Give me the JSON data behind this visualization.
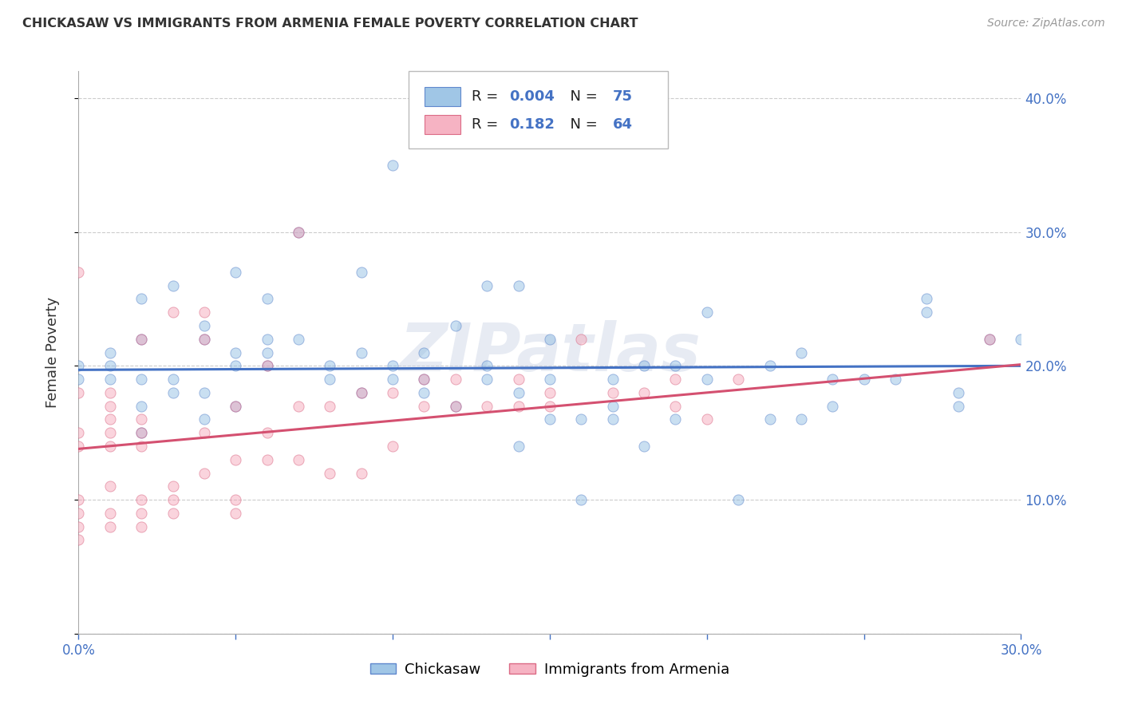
{
  "title": "CHICKASAW VS IMMIGRANTS FROM ARMENIA FEMALE POVERTY CORRELATION CHART",
  "source": "Source: ZipAtlas.com",
  "ylabel": "Female Poverty",
  "color_blue": "#89b8e0",
  "color_pink": "#f4a0b4",
  "trendline_blue": "#4472c4",
  "trendline_pink": "#d45070",
  "watermark": "ZIPatlas",
  "xlim": [
    0.0,
    0.3
  ],
  "ylim": [
    0.0,
    0.42
  ],
  "marker_size": 90,
  "marker_alpha": 0.45,
  "trendline_blue_intercept": 0.197,
  "trendline_blue_slope": 0.01,
  "trendline_pink_intercept": 0.138,
  "trendline_pink_slope": 0.21,
  "blue_scatter_x": [
    0.0,
    0.0,
    0.01,
    0.01,
    0.01,
    0.02,
    0.02,
    0.02,
    0.02,
    0.02,
    0.03,
    0.03,
    0.03,
    0.04,
    0.04,
    0.04,
    0.04,
    0.05,
    0.05,
    0.05,
    0.05,
    0.06,
    0.06,
    0.06,
    0.06,
    0.07,
    0.07,
    0.08,
    0.08,
    0.09,
    0.09,
    0.09,
    0.1,
    0.1,
    0.1,
    0.11,
    0.11,
    0.11,
    0.12,
    0.12,
    0.13,
    0.13,
    0.13,
    0.14,
    0.14,
    0.14,
    0.15,
    0.15,
    0.15,
    0.16,
    0.16,
    0.17,
    0.17,
    0.17,
    0.18,
    0.18,
    0.19,
    0.19,
    0.2,
    0.2,
    0.21,
    0.22,
    0.22,
    0.23,
    0.23,
    0.24,
    0.24,
    0.25,
    0.26,
    0.27,
    0.27,
    0.28,
    0.28,
    0.29,
    0.3
  ],
  "blue_scatter_y": [
    0.19,
    0.2,
    0.19,
    0.2,
    0.21,
    0.15,
    0.17,
    0.19,
    0.22,
    0.25,
    0.18,
    0.19,
    0.26,
    0.16,
    0.18,
    0.22,
    0.23,
    0.17,
    0.2,
    0.21,
    0.27,
    0.2,
    0.21,
    0.22,
    0.25,
    0.22,
    0.3,
    0.19,
    0.2,
    0.18,
    0.21,
    0.27,
    0.19,
    0.2,
    0.35,
    0.18,
    0.19,
    0.21,
    0.17,
    0.23,
    0.19,
    0.2,
    0.26,
    0.14,
    0.18,
    0.26,
    0.16,
    0.19,
    0.22,
    0.1,
    0.16,
    0.17,
    0.16,
    0.19,
    0.14,
    0.2,
    0.16,
    0.2,
    0.19,
    0.24,
    0.1,
    0.16,
    0.2,
    0.16,
    0.21,
    0.17,
    0.19,
    0.19,
    0.19,
    0.24,
    0.25,
    0.17,
    0.18,
    0.22,
    0.22
  ],
  "pink_scatter_x": [
    0.0,
    0.0,
    0.0,
    0.0,
    0.0,
    0.0,
    0.0,
    0.0,
    0.01,
    0.01,
    0.01,
    0.01,
    0.01,
    0.01,
    0.01,
    0.01,
    0.02,
    0.02,
    0.02,
    0.02,
    0.02,
    0.02,
    0.02,
    0.03,
    0.03,
    0.03,
    0.03,
    0.04,
    0.04,
    0.04,
    0.04,
    0.05,
    0.05,
    0.05,
    0.05,
    0.06,
    0.06,
    0.06,
    0.07,
    0.07,
    0.07,
    0.08,
    0.08,
    0.09,
    0.09,
    0.1,
    0.1,
    0.11,
    0.11,
    0.12,
    0.12,
    0.13,
    0.14,
    0.14,
    0.15,
    0.15,
    0.16,
    0.17,
    0.18,
    0.19,
    0.19,
    0.2,
    0.21,
    0.29
  ],
  "pink_scatter_y": [
    0.07,
    0.08,
    0.09,
    0.1,
    0.14,
    0.15,
    0.18,
    0.27,
    0.08,
    0.09,
    0.11,
    0.14,
    0.15,
    0.16,
    0.17,
    0.18,
    0.08,
    0.09,
    0.1,
    0.14,
    0.15,
    0.16,
    0.22,
    0.09,
    0.1,
    0.11,
    0.24,
    0.12,
    0.15,
    0.22,
    0.24,
    0.09,
    0.1,
    0.13,
    0.17,
    0.13,
    0.15,
    0.2,
    0.13,
    0.17,
    0.3,
    0.12,
    0.17,
    0.12,
    0.18,
    0.14,
    0.18,
    0.17,
    0.19,
    0.17,
    0.19,
    0.17,
    0.17,
    0.19,
    0.17,
    0.18,
    0.22,
    0.18,
    0.18,
    0.17,
    0.19,
    0.16,
    0.19,
    0.22
  ],
  "grid_color": "#cccccc",
  "background_color": "#ffffff",
  "legend_bottom_label1": "Chickasaw",
  "legend_bottom_label2": "Immigrants from Armenia"
}
